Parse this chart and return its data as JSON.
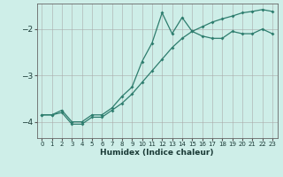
{
  "xlabel": "Humidex (Indice chaleur)",
  "background_color": "#ceeee8",
  "grid_color": "#aaaaaa",
  "line_color": "#2e7d6e",
  "xlim": [
    -0.5,
    23.5
  ],
  "ylim": [
    -4.35,
    -1.45
  ],
  "xticks": [
    0,
    1,
    2,
    3,
    4,
    5,
    6,
    7,
    8,
    9,
    10,
    11,
    12,
    13,
    14,
    15,
    16,
    17,
    18,
    19,
    20,
    21,
    22,
    23
  ],
  "yticks": [
    -4,
    -3,
    -2
  ],
  "line1_x": [
    0,
    1,
    2,
    3,
    4,
    5,
    6,
    7,
    8,
    9,
    10,
    11,
    12,
    13,
    14,
    15,
    16,
    17,
    18,
    19,
    20,
    21,
    22,
    23
  ],
  "line1_y": [
    -3.85,
    -3.85,
    -3.75,
    -4.0,
    -4.0,
    -3.85,
    -3.85,
    -3.7,
    -3.45,
    -3.25,
    -2.7,
    -2.3,
    -1.65,
    -2.1,
    -1.75,
    -2.05,
    -2.15,
    -2.2,
    -2.2,
    -2.05,
    -2.1,
    -2.1,
    -2.0,
    -2.1
  ],
  "line2_x": [
    0,
    1,
    2,
    3,
    4,
    5,
    6,
    7,
    8,
    9,
    10,
    11,
    12,
    13,
    14,
    15,
    16,
    17,
    18,
    19,
    20,
    21,
    22,
    23
  ],
  "line2_y": [
    -3.85,
    -3.85,
    -3.8,
    -4.05,
    -4.05,
    -3.9,
    -3.9,
    -3.75,
    -3.6,
    -3.4,
    -3.15,
    -2.9,
    -2.65,
    -2.4,
    -2.2,
    -2.05,
    -1.95,
    -1.85,
    -1.78,
    -1.72,
    -1.65,
    -1.62,
    -1.58,
    -1.62
  ]
}
